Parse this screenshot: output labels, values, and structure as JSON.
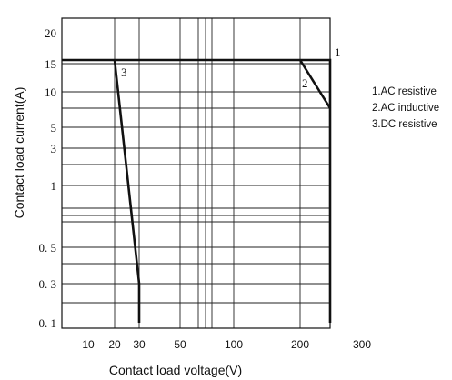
{
  "chart_data": {
    "type": "line",
    "xlabel": "Contact load voltage(V)",
    "ylabel": "Contact load current(A)",
    "x_ticks": [
      {
        "value": 10,
        "label": "10"
      },
      {
        "value": 20,
        "label": "20"
      },
      {
        "value": 30,
        "label": "30"
      },
      {
        "value": 50,
        "label": "50"
      },
      {
        "value": 100,
        "label": "100"
      },
      {
        "value": 200,
        "label": "200"
      },
      {
        "value": 300,
        "label": "300"
      }
    ],
    "y_ticks": [
      {
        "value": 0.1,
        "label": "0. 1"
      },
      {
        "value": 0.3,
        "label": "0. 3"
      },
      {
        "value": 0.5,
        "label": "0. 5"
      },
      {
        "value": 1,
        "label": "1"
      },
      {
        "value": 3,
        "label": "3"
      },
      {
        "value": 5,
        "label": "5"
      },
      {
        "value": 10,
        "label": "10"
      },
      {
        "value": 15,
        "label": "15"
      },
      {
        "value": 20,
        "label": "20"
      }
    ],
    "x_gridlines": [
      20,
      30,
      50,
      70,
      80,
      90,
      100,
      200,
      250
    ],
    "y_gridlines": [
      0.2,
      0.3,
      0.4,
      0.5,
      0.75,
      0.85,
      0.95,
      1,
      2,
      3,
      5,
      8,
      10,
      15
    ],
    "grid": true,
    "legend_position": "right",
    "series": [
      {
        "name": "1.AC resistive",
        "label": "1",
        "x": [
          5,
          250,
          250
        ],
        "y": [
          16,
          16,
          0.1
        ]
      },
      {
        "name": "2.AC inductive",
        "label": "2",
        "x": [
          200,
          250
        ],
        "y": [
          16,
          8
        ]
      },
      {
        "name": "3.DC resistive",
        "label": "3",
        "x": [
          20,
          30,
          30
        ],
        "y": [
          16,
          0.3,
          0.1
        ]
      }
    ]
  }
}
